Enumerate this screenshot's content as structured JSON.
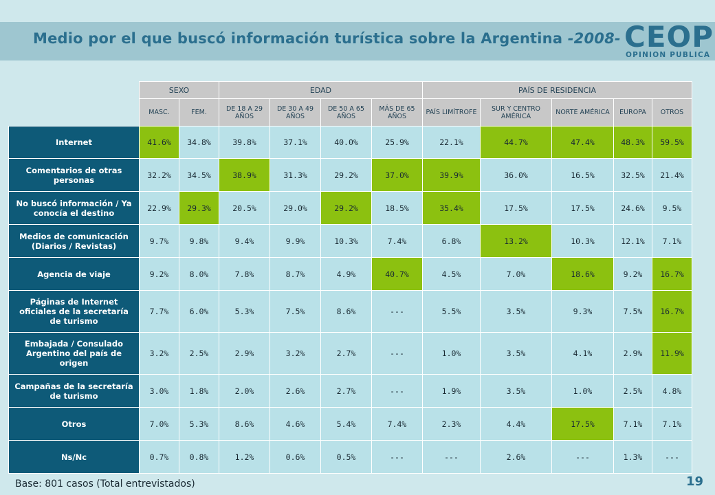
{
  "header": {
    "title": "Medio por el que buscó información turística sobre la Argentina ",
    "year": "-2008-",
    "logo_word": "CEOP",
    "logo_sub": "OPINION PUBLICA"
  },
  "table": {
    "groups": [
      {
        "label": "SEXO",
        "span": 2
      },
      {
        "label": "EDAD",
        "span": 4
      },
      {
        "label": "PAÍS DE RESIDENCIA",
        "span": 5
      }
    ],
    "columns": [
      "MASC.",
      "FEM.",
      "DE 18 A 29 AÑOS",
      "DE 30 A 49 AÑOS",
      "DE 50 A 65 AÑOS",
      "MÁS DE 65 AÑOS",
      "PAÍS LIMÍTROFE",
      "SUR Y CENTRO AMÉRICA",
      "NORTE AMÉRICA",
      "EUROPA",
      "OTROS"
    ],
    "highlight_color": "#8cc110",
    "rows": [
      {
        "label": "Internet",
        "values": [
          "41.6%",
          "34.8%",
          "39.8%",
          "37.1%",
          "40.0%",
          "25.9%",
          "22.1%",
          "44.7%",
          "47.4%",
          "48.3%",
          "59.5%"
        ],
        "highlight": [
          0,
          7,
          8,
          9,
          10
        ]
      },
      {
        "label": "Comentarios de otras personas",
        "values": [
          "32.2%",
          "34.5%",
          "38.9%",
          "31.3%",
          "29.2%",
          "37.0%",
          "39.9%",
          "36.0%",
          "16.5%",
          "32.5%",
          "21.4%"
        ],
        "highlight": [
          2,
          5,
          6
        ]
      },
      {
        "label": "No buscó información / Ya conocía el destino",
        "values": [
          "22.9%",
          "29.3%",
          "20.5%",
          "29.0%",
          "29.2%",
          "18.5%",
          "35.4%",
          "17.5%",
          "17.5%",
          "24.6%",
          "9.5%"
        ],
        "highlight": [
          1,
          4,
          6
        ]
      },
      {
        "label": "Medios de comunicación (Diarios / Revistas)",
        "values": [
          "9.7%",
          "9.8%",
          "9.4%",
          "9.9%",
          "10.3%",
          "7.4%",
          "6.8%",
          "13.2%",
          "10.3%",
          "12.1%",
          "7.1%"
        ],
        "highlight": [
          7
        ]
      },
      {
        "label": "Agencia de viaje",
        "values": [
          "9.2%",
          "8.0%",
          "7.8%",
          "8.7%",
          "4.9%",
          "40.7%",
          "4.5%",
          "7.0%",
          "18.6%",
          "9.2%",
          "16.7%"
        ],
        "highlight": [
          5,
          8,
          10
        ]
      },
      {
        "label": "Páginas de Internet oficiales de la secretaría de turismo",
        "values": [
          "7.7%",
          "6.0%",
          "5.3%",
          "7.5%",
          "8.6%",
          "---",
          "5.5%",
          "3.5%",
          "9.3%",
          "7.5%",
          "16.7%"
        ],
        "highlight": [
          10
        ]
      },
      {
        "label": "Embajada / Consulado Argentino del país de origen",
        "values": [
          "3.2%",
          "2.5%",
          "2.9%",
          "3.2%",
          "2.7%",
          "---",
          "1.0%",
          "3.5%",
          "4.1%",
          "2.9%",
          "11.9%"
        ],
        "highlight": [
          10
        ]
      },
      {
        "label": "Campañas de la secretaría de turismo",
        "values": [
          "3.0%",
          "1.8%",
          "2.0%",
          "2.6%",
          "2.7%",
          "---",
          "1.9%",
          "3.5%",
          "1.0%",
          "2.5%",
          "4.8%"
        ],
        "highlight": []
      },
      {
        "label": "Otros",
        "values": [
          "7.0%",
          "5.3%",
          "8.6%",
          "4.6%",
          "5.4%",
          "7.4%",
          "2.3%",
          "4.4%",
          "17.5%",
          "7.1%",
          "7.1%"
        ],
        "highlight": [
          8
        ]
      },
      {
        "label": "Ns/Nc",
        "values": [
          "0.7%",
          "0.8%",
          "1.2%",
          "0.6%",
          "0.5%",
          "---",
          "---",
          "2.6%",
          "---",
          "1.3%",
          "---"
        ],
        "highlight": []
      }
    ]
  },
  "footer": {
    "base": "Base: 801 casos (Total entrevistados)",
    "page_number": "19"
  }
}
